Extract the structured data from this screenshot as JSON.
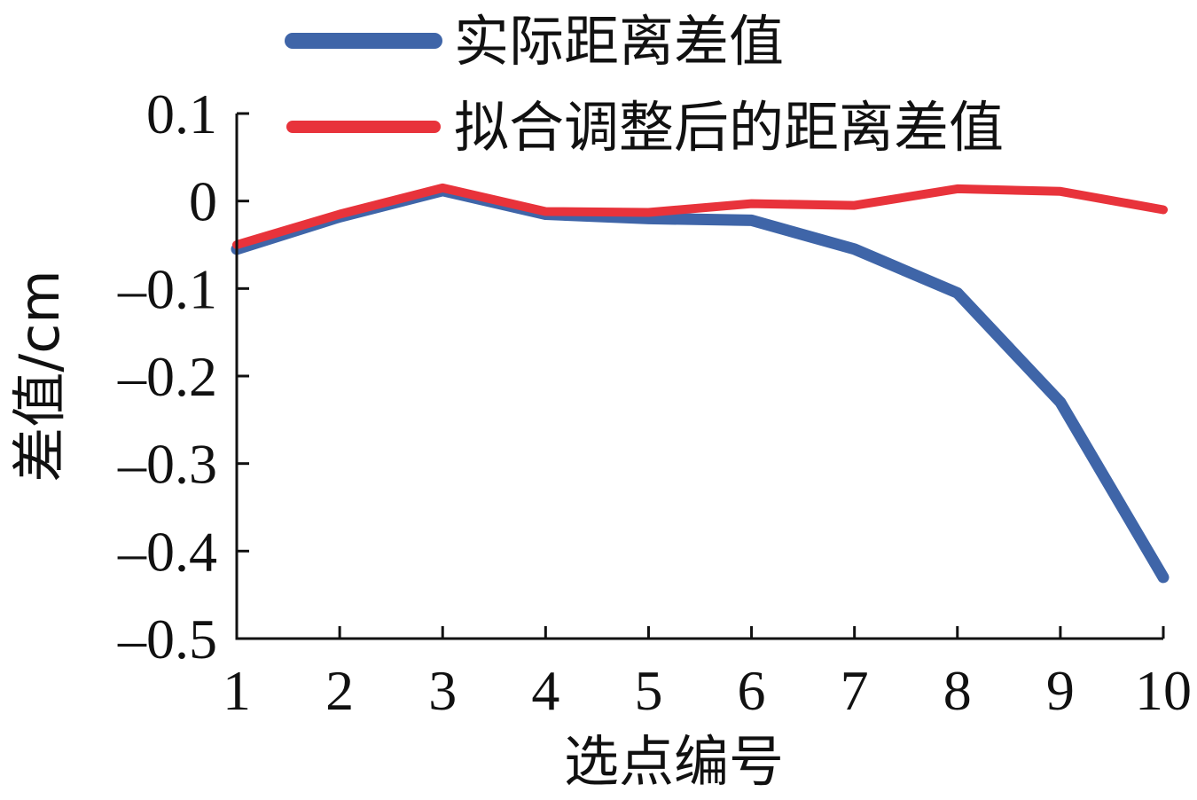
{
  "chart_data": {
    "type": "line",
    "categories": [
      "1",
      "2",
      "3",
      "4",
      "5",
      "6",
      "7",
      "8",
      "9",
      "10"
    ],
    "x": [
      1,
      2,
      3,
      4,
      5,
      6,
      7,
      8,
      9,
      10
    ],
    "series": [
      {
        "name": "实际距离差值",
        "color": "#3f65a8",
        "values": [
          -0.055,
          -0.018,
          0.012,
          -0.015,
          -0.02,
          -0.022,
          -0.055,
          -0.105,
          -0.23,
          -0.43
        ]
      },
      {
        "name": "拟合调整后的距离差值",
        "color": "#e8333b",
        "values": [
          -0.05,
          -0.015,
          0.015,
          -0.012,
          -0.013,
          -0.003,
          -0.005,
          0.014,
          0.011,
          -0.01
        ]
      }
    ],
    "xlabel": "选点编号",
    "ylabel": "差值/cm",
    "ylim": [
      -0.5,
      0.1
    ],
    "yticks": [
      0.1,
      0,
      -0.1,
      -0.2,
      -0.3,
      -0.4,
      -0.5
    ],
    "ytick_labels": [
      "0.1",
      "0",
      "–0.1",
      "–0.2",
      "–0.3",
      "–0.4",
      "–0.5"
    ],
    "grid": false,
    "legend_position": "top"
  }
}
